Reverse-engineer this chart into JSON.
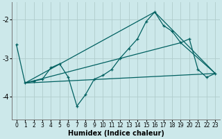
{
  "xlabel": "Humidex (Indice chaleur)",
  "bg_color": "#cce8ea",
  "grid_color": "#b0cccc",
  "line_color": "#006060",
  "xlim": [
    -0.5,
    23.5
  ],
  "ylim": [
    -4.6,
    -1.55
  ],
  "yticks": [
    -4,
    -3,
    -2
  ],
  "xticks": [
    0,
    1,
    2,
    3,
    4,
    5,
    6,
    7,
    8,
    9,
    10,
    11,
    12,
    13,
    14,
    15,
    16,
    17,
    18,
    19,
    20,
    21,
    22,
    23
  ],
  "main_x": [
    0,
    1,
    2,
    3,
    4,
    5,
    6,
    7,
    8,
    9,
    10,
    11,
    12,
    13,
    14,
    15,
    16,
    17,
    18,
    19,
    20,
    21,
    22,
    23
  ],
  "main_y": [
    -2.65,
    -3.65,
    -3.6,
    -3.55,
    -3.25,
    -3.15,
    -3.5,
    -4.25,
    -3.95,
    -3.55,
    -3.45,
    -3.3,
    -3.0,
    -2.75,
    -2.5,
    -2.05,
    -1.8,
    -2.15,
    -2.3,
    -2.6,
    -2.5,
    -3.3,
    -3.5,
    -3.4
  ],
  "line1_x": [
    1,
    23
  ],
  "line1_y": [
    -3.65,
    -3.4
  ],
  "line2_x": [
    1,
    16,
    23
  ],
  "line2_y": [
    -3.65,
    -1.8,
    -3.4
  ],
  "line3_x": [
    1,
    19,
    23
  ],
  "line3_y": [
    -3.65,
    -2.6,
    -3.4
  ]
}
